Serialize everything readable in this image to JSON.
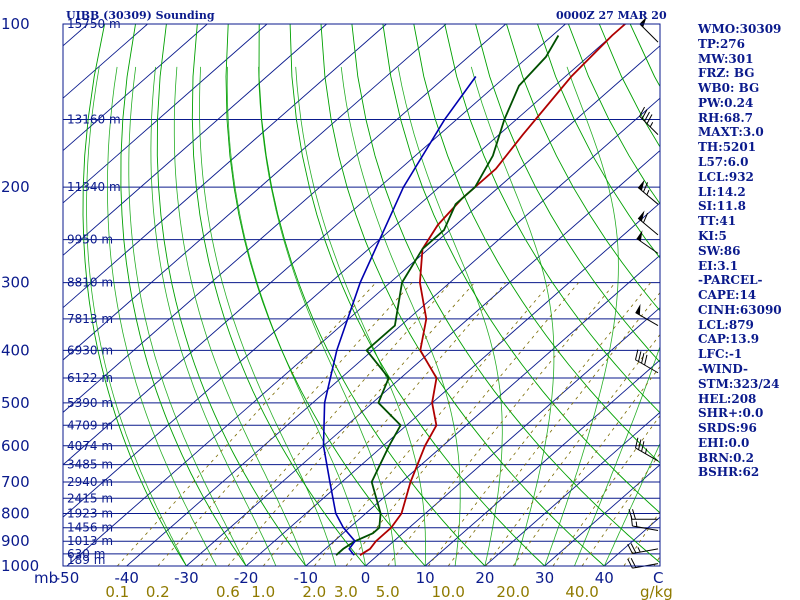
{
  "header": {
    "title": "UIBB (30309) Sounding",
    "time": "0000Z 27 MAR 20"
  },
  "indices": [
    "WMO:30309",
    "TP:276",
    "MW:301",
    "FRZ: BG",
    "WB0: BG",
    "PW:0.24",
    "RH:68.7",
    "MAXT:3.0",
    "TH:5201",
    "L57:6.0",
    "LCL:932",
    "LI:14.2",
    "SI:11.8",
    "TT:41",
    "KI:5",
    "SW:86",
    "EI:3.1",
    "-PARCEL-",
    "CAPE:14",
    "CINH:63090",
    "LCL:879",
    "CAP:13.9",
    "LFC:-1",
    "-WIND-",
    "STM:323/24",
    "HEL:208",
    "SHR+:0.0",
    "SRDS:96",
    "EHI:0.0",
    "BRN:0.2",
    "BSHR:62"
  ],
  "colors": {
    "frame": "#0a1a8c",
    "isobar": "#0a1a8c",
    "isotherm": "#0a1a8c",
    "dry_adiabat": "#00a000",
    "moist_adiabat": "#00a000",
    "mixing_ratio": "#7a6a00",
    "temperature": "#b00000",
    "dewpoint": "#005000",
    "parcel": "#0000b0",
    "wind": "#000000",
    "mixing_label": "#8f7a00"
  },
  "chart_data": {
    "type": "skew-t",
    "x_unit_label": "C",
    "pressure_unit_label": "mb",
    "mixing_unit_label": "g/kg",
    "pressure_ticks": [
      "100",
      "200",
      "300",
      "400",
      "500",
      "600",
      "700",
      "800",
      "900",
      "1000"
    ],
    "temperature_ticks": [
      "-50",
      "-40",
      "-30",
      "-20",
      "-10",
      "0",
      "10",
      "20",
      "30",
      "40"
    ],
    "mixing_ratio_labels": [
      "0.1",
      "0.2",
      "0.6",
      "1.0",
      "2.0",
      "3.0",
      "5.0",
      "10.0",
      "20.0",
      "40.0"
    ],
    "height_labels": [
      {
        "p": 100,
        "text": "15750 m"
      },
      {
        "p": 150,
        "text": "13160 m"
      },
      {
        "p": 200,
        "text": "11340 m"
      },
      {
        "p": 250,
        "text": "9950 m"
      },
      {
        "p": 300,
        "text": "8810 m"
      },
      {
        "p": 350,
        "text": "7813 m"
      },
      {
        "p": 400,
        "text": "6930 m"
      },
      {
        "p": 450,
        "text": "6122 m"
      },
      {
        "p": 500,
        "text": "5390 m"
      },
      {
        "p": 550,
        "text": "4709 m"
      },
      {
        "p": 600,
        "text": "4074 m"
      },
      {
        "p": 650,
        "text": "3485 m"
      },
      {
        "p": 700,
        "text": "2940 m"
      },
      {
        "p": 750,
        "text": "2415 m"
      },
      {
        "p": 800,
        "text": "1923 m"
      },
      {
        "p": 850,
        "text": "1456 m"
      },
      {
        "p": 900,
        "text": "1013 m"
      },
      {
        "p": 950,
        "text": "630 m"
      },
      {
        "p": 975,
        "text": "189 m"
      }
    ],
    "series": [
      {
        "key": "temperature",
        "points": [
          [
            955,
            -3
          ],
          [
            930,
            -2.5
          ],
          [
            900,
            -3
          ],
          [
            850,
            -3
          ],
          [
            800,
            -4
          ],
          [
            700,
            -8.5
          ],
          [
            600,
            -13
          ],
          [
            550,
            -15
          ],
          [
            500,
            -20
          ],
          [
            450,
            -24
          ],
          [
            400,
            -32
          ],
          [
            350,
            -37
          ],
          [
            300,
            -45
          ],
          [
            260,
            -51
          ],
          [
            235,
            -53
          ],
          [
            210,
            -54
          ],
          [
            185,
            -54
          ],
          [
            160,
            -56
          ],
          [
            125,
            -59
          ],
          [
            105,
            -60
          ],
          [
            100,
            -60
          ]
        ]
      },
      {
        "key": "dewpoint",
        "points": [
          [
            955,
            -7
          ],
          [
            930,
            -7
          ],
          [
            900,
            -6.5
          ],
          [
            870,
            -5
          ],
          [
            850,
            -5
          ],
          [
            800,
            -7.5
          ],
          [
            700,
            -15
          ],
          [
            600,
            -19
          ],
          [
            550,
            -21
          ],
          [
            500,
            -29
          ],
          [
            450,
            -32
          ],
          [
            400,
            -41
          ],
          [
            360,
            -41
          ],
          [
            300,
            -48
          ],
          [
            260,
            -51
          ],
          [
            240,
            -51
          ],
          [
            215,
            -54
          ],
          [
            200,
            -54
          ],
          [
            175,
            -57
          ],
          [
            150,
            -62
          ],
          [
            130,
            -66
          ],
          [
            115,
            -67
          ],
          [
            105,
            -69
          ]
        ]
      },
      {
        "key": "parcel",
        "points": [
          [
            955,
            -4
          ],
          [
            930,
            -6
          ],
          [
            900,
            -6.5
          ],
          [
            850,
            -11
          ],
          [
            800,
            -15
          ],
          [
            700,
            -22
          ],
          [
            600,
            -30
          ],
          [
            500,
            -38
          ],
          [
            400,
            -46
          ],
          [
            300,
            -55
          ],
          [
            200,
            -66
          ],
          [
            150,
            -72
          ],
          [
            125,
            -75
          ]
        ]
      }
    ],
    "wind_barbs": [
      {
        "p": 108,
        "dir": 315,
        "speed": 50
      },
      {
        "p": 160,
        "dir": 315,
        "speed": 45
      },
      {
        "p": 215,
        "dir": 310,
        "speed": 65
      },
      {
        "p": 245,
        "dir": 310,
        "speed": 60
      },
      {
        "p": 265,
        "dir": 305,
        "speed": 50
      },
      {
        "p": 360,
        "dir": 300,
        "speed": 50
      },
      {
        "p": 440,
        "dir": 300,
        "speed": 40
      },
      {
        "p": 640,
        "dir": 300,
        "speed": 35
      },
      {
        "p": 820,
        "dir": 270,
        "speed": 20
      },
      {
        "p": 860,
        "dir": 280,
        "speed": 15
      },
      {
        "p": 930,
        "dir": 260,
        "speed": 25
      },
      {
        "p": 990,
        "dir": 260,
        "speed": 20
      }
    ]
  }
}
